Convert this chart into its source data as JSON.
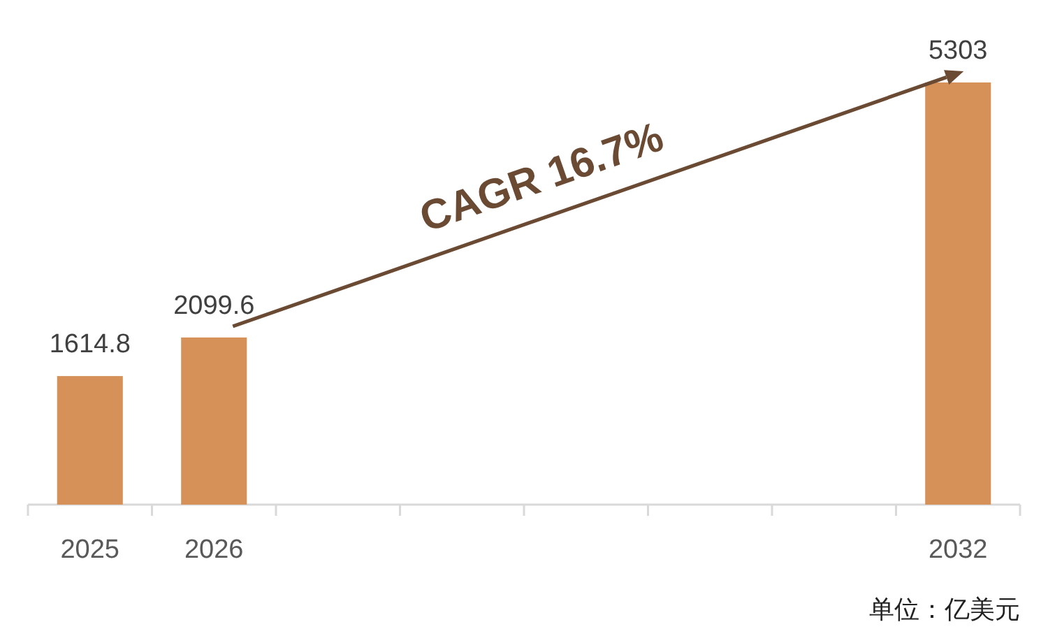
{
  "chart_data": {
    "type": "bar",
    "categories": [
      "2025",
      "2026",
      null,
      null,
      null,
      null,
      null,
      "2032"
    ],
    "values": [
      1614.8,
      2099.6,
      null,
      null,
      null,
      null,
      null,
      5303
    ],
    "color": "#d59158",
    "data_labels": true,
    "annotations": [
      "CAGR 16.7%",
      "单位：亿美元"
    ]
  }
}
